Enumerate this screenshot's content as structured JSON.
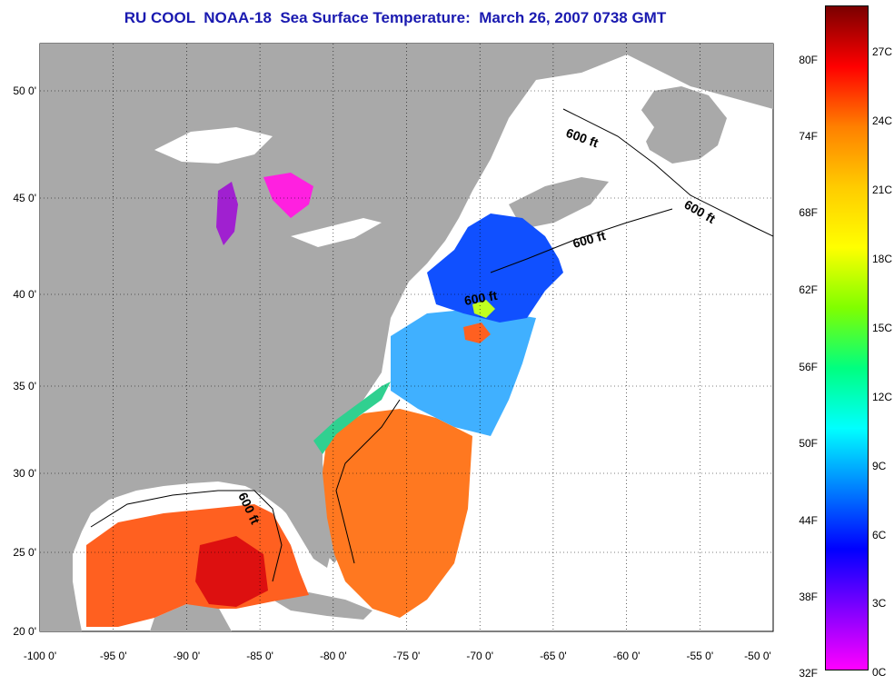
{
  "title": "RU COOL  NOAA-18  Sea Surface Temperature:  March 26, 2007 0738 GMT",
  "map": {
    "lon_range": [
      -100,
      -50
    ],
    "lat_range": [
      20,
      52.5
    ],
    "lon_ticks": [
      "-100 0'",
      "-95 0'",
      "-90 0'",
      "-85 0'",
      "-80 0'",
      "-75 0'",
      "-70 0'",
      "-65 0'",
      "-60 0'",
      "-55 0'",
      "-50 0'"
    ],
    "lat_ticks": [
      "20 0'",
      "25 0'",
      "30 0'",
      "35 0'",
      "40 0'",
      "45 0'",
      "50 0'"
    ],
    "contour_labels": [
      "600 ft",
      "600 ft",
      "600 ft",
      "600 ft",
      "600 ft"
    ],
    "colors": {
      "land": "#a9a9a9",
      "no_data": "#ffffff",
      "gridline": "#000000"
    }
  },
  "colorbar": {
    "fahrenheit_labels": [
      "80F",
      "74F",
      "68F",
      "62F",
      "56F",
      "50F",
      "44F",
      "38F",
      "32F"
    ],
    "celsius_labels": [
      "27C",
      "24C",
      "21C",
      "18C",
      "15C",
      "12C",
      "9C",
      "6C",
      "3C",
      "0C"
    ],
    "colors_top_to_bottom": [
      "#7a0000",
      "#ff0000",
      "#ff8000",
      "#ffcc00",
      "#ffff00",
      "#80ff00",
      "#00ff80",
      "#00ffff",
      "#0080ff",
      "#0000ff",
      "#8000ff",
      "#ff00ff"
    ]
  }
}
